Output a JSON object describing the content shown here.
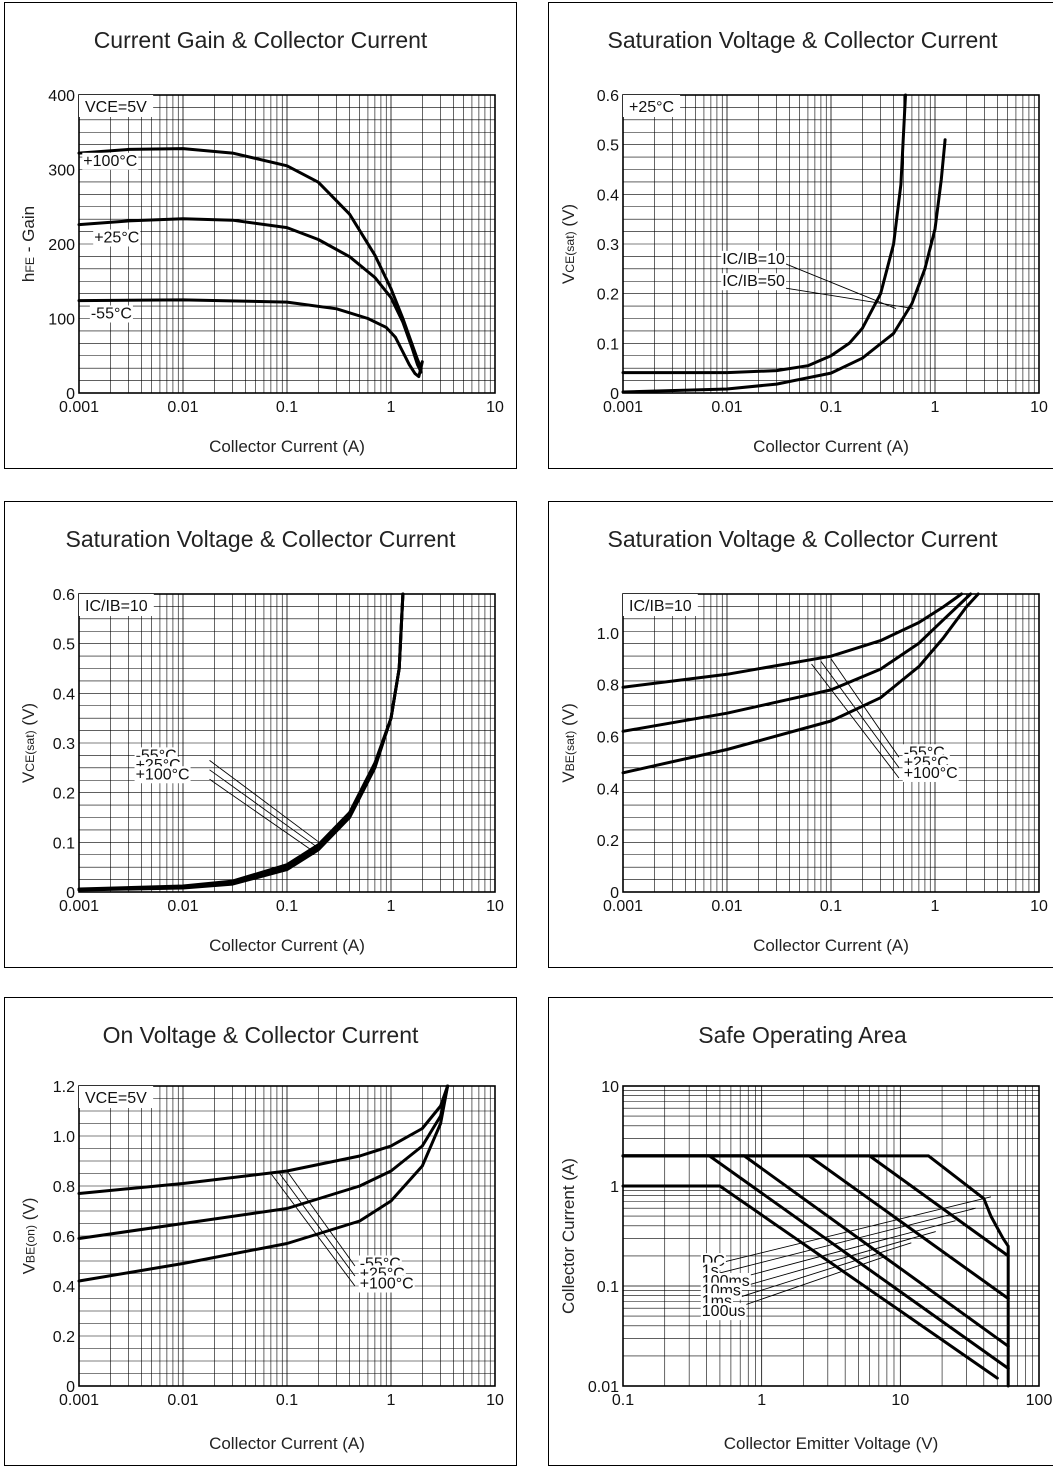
{
  "chart_data": [
    {
      "type": "line",
      "title": "Current Gain & Collector Current",
      "xlabel": "Collector Current (A)",
      "ylabel": "hFE - Gain",
      "xscale": "log",
      "yscale": "linear",
      "xlim": [
        0.001,
        10
      ],
      "ylim": [
        0,
        400
      ],
      "xticks": [
        "0.001",
        "0.01",
        "0.1",
        "1",
        "10"
      ],
      "yticks": [
        {
          "v": 0,
          "t": "0"
        },
        {
          "v": 100,
          "t": "100"
        },
        {
          "v": 200,
          "t": "200"
        },
        {
          "v": 300,
          "t": "300"
        },
        {
          "v": 400,
          "t": "400"
        }
      ],
      "grid": true,
      "condition": "VCE=5V",
      "series": [
        {
          "name": "+100°C",
          "points": [
            [
              0.001,
              322
            ],
            [
              0.003,
              327
            ],
            [
              0.01,
              328
            ],
            [
              0.03,
              322
            ],
            [
              0.1,
              305
            ],
            [
              0.2,
              283
            ],
            [
              0.4,
              240
            ],
            [
              0.7,
              185
            ],
            [
              1,
              140
            ],
            [
              1.3,
              100
            ],
            [
              1.6,
              65
            ],
            [
              1.8,
              45
            ],
            [
              1.95,
              33
            ]
          ]
        },
        {
          "name": "+25°C",
          "points": [
            [
              0.001,
              226
            ],
            [
              0.003,
              231
            ],
            [
              0.01,
              234
            ],
            [
              0.03,
              232
            ],
            [
              0.1,
              222
            ],
            [
              0.2,
              206
            ],
            [
              0.4,
              183
            ],
            [
              0.7,
              155
            ],
            [
              1,
              128
            ],
            [
              1.3,
              95
            ],
            [
              1.6,
              60
            ],
            [
              1.8,
              38
            ],
            [
              1.95,
              28
            ]
          ]
        },
        {
          "name": "-55°C",
          "points": [
            [
              0.001,
              124
            ],
            [
              0.01,
              125
            ],
            [
              0.1,
              122
            ],
            [
              0.3,
              113
            ],
            [
              0.6,
              100
            ],
            [
              0.9,
              88
            ],
            [
              1.1,
              75
            ],
            [
              1.3,
              55
            ],
            [
              1.5,
              38
            ],
            [
              1.7,
              26
            ],
            [
              1.85,
              22
            ],
            [
              1.95,
              35
            ],
            [
              2.0,
              42
            ]
          ]
        }
      ],
      "annotations": [
        {
          "text": "+100°C",
          "x": 0.0011,
          "y": 305
        },
        {
          "text": "+25°C",
          "x": 0.0014,
          "y": 202
        },
        {
          "text": "-55°C",
          "x": 0.0013,
          "y": 100
        }
      ]
    },
    {
      "type": "line",
      "title": "Saturation Voltage & Collector Current",
      "xlabel": "Collector Current (A)",
      "ylabel": "VCE(sat) (V)",
      "xscale": "log",
      "yscale": "linear",
      "xlim": [
        0.001,
        10
      ],
      "ylim": [
        0,
        0.6
      ],
      "xticks": [
        "0.001",
        "0.01",
        "0.1",
        "1",
        "10"
      ],
      "yticks": [
        {
          "v": 0,
          "t": "0"
        },
        {
          "v": 0.1,
          "t": "0.1"
        },
        {
          "v": 0.2,
          "t": "0.2"
        },
        {
          "v": 0.3,
          "t": "0.3"
        },
        {
          "v": 0.4,
          "t": "0.4"
        },
        {
          "v": 0.5,
          "t": "0.5"
        },
        {
          "v": 0.6,
          "t": "0.6"
        }
      ],
      "grid": true,
      "condition": "+25°C",
      "series": [
        {
          "name": "IC/IB=10",
          "points": [
            [
              0.001,
              0.041
            ],
            [
              0.01,
              0.041
            ],
            [
              0.03,
              0.045
            ],
            [
              0.06,
              0.055
            ],
            [
              0.1,
              0.075
            ],
            [
              0.15,
              0.1
            ],
            [
              0.2,
              0.13
            ],
            [
              0.3,
              0.2
            ],
            [
              0.4,
              0.3
            ],
            [
              0.47,
              0.42
            ],
            [
              0.52,
              0.6
            ]
          ]
        },
        {
          "name": "IC/IB=50",
          "points": [
            [
              0.001,
              0.002
            ],
            [
              0.01,
              0.008
            ],
            [
              0.03,
              0.018
            ],
            [
              0.1,
              0.04
            ],
            [
              0.2,
              0.07
            ],
            [
              0.4,
              0.12
            ],
            [
              0.6,
              0.18
            ],
            [
              0.8,
              0.25
            ],
            [
              1.0,
              0.33
            ],
            [
              1.15,
              0.43
            ],
            [
              1.25,
              0.51
            ]
          ]
        }
      ],
      "annotations": [
        {
          "text": "IC/IB=10",
          "x": 0.009,
          "y": 0.26
        },
        {
          "text": "IC/IB=50",
          "x": 0.009,
          "y": 0.215
        }
      ]
    },
    {
      "type": "line",
      "title": "Saturation Voltage & Collector Current",
      "xlabel": "Collector Current (A)",
      "ylabel": "VCE(sat) (V)",
      "xscale": "log",
      "yscale": "linear",
      "xlim": [
        0.001,
        10
      ],
      "ylim": [
        0,
        0.6
      ],
      "xticks": [
        "0.001",
        "0.01",
        "0.1",
        "1",
        "10"
      ],
      "yticks": [
        {
          "v": 0,
          "t": "0"
        },
        {
          "v": 0.1,
          "t": "0.1"
        },
        {
          "v": 0.2,
          "t": "0.2"
        },
        {
          "v": 0.3,
          "t": "0.3"
        },
        {
          "v": 0.4,
          "t": "0.4"
        },
        {
          "v": 0.5,
          "t": "0.5"
        },
        {
          "v": 0.6,
          "t": "0.6"
        }
      ],
      "grid": true,
      "condition": "IC/IB=10",
      "series": [
        {
          "name": "-55°C",
          "points": [
            [
              0.001,
              0.004
            ],
            [
              0.01,
              0.008
            ],
            [
              0.03,
              0.016
            ],
            [
              0.1,
              0.045
            ],
            [
              0.2,
              0.085
            ],
            [
              0.4,
              0.15
            ],
            [
              0.7,
              0.25
            ],
            [
              1.0,
              0.35
            ],
            [
              1.2,
              0.45
            ],
            [
              1.3,
              0.6
            ]
          ]
        },
        {
          "name": "+25°C",
          "points": [
            [
              0.001,
              0.005
            ],
            [
              0.01,
              0.01
            ],
            [
              0.03,
              0.019
            ],
            [
              0.1,
              0.05
            ],
            [
              0.2,
              0.09
            ],
            [
              0.4,
              0.155
            ],
            [
              0.7,
              0.255
            ],
            [
              1.0,
              0.35
            ],
            [
              1.2,
              0.45
            ],
            [
              1.3,
              0.6
            ]
          ]
        },
        {
          "name": "+100°C",
          "points": [
            [
              0.001,
              0.006
            ],
            [
              0.01,
              0.012
            ],
            [
              0.03,
              0.022
            ],
            [
              0.1,
              0.055
            ],
            [
              0.2,
              0.095
            ],
            [
              0.4,
              0.16
            ],
            [
              0.7,
              0.26
            ],
            [
              1.0,
              0.35
            ],
            [
              1.2,
              0.45
            ],
            [
              1.3,
              0.6
            ]
          ]
        }
      ],
      "annotations": [
        {
          "text": "-55°C",
          "x": 0.0035,
          "y": 0.265
        },
        {
          "text": "+25°C",
          "x": 0.0035,
          "y": 0.246
        },
        {
          "text": "+100°C",
          "x": 0.0035,
          "y": 0.227
        }
      ]
    },
    {
      "type": "line",
      "title": "Saturation Voltage & Collector Current",
      "xlabel": "Collector Current (A)",
      "ylabel": "VBE(sat) (V)",
      "xscale": "log",
      "yscale": "linear",
      "xlim": [
        0.001,
        10
      ],
      "ylim": [
        0,
        1.15
      ],
      "xticks": [
        "0.001",
        "0.01",
        "0.1",
        "1",
        "10"
      ],
      "yticks": [
        {
          "v": 0,
          "t": "0"
        },
        {
          "v": 0.2,
          "t": "0.2"
        },
        {
          "v": 0.4,
          "t": "0.4"
        },
        {
          "v": 0.6,
          "t": "0.6"
        },
        {
          "v": 0.8,
          "t": "0.8"
        },
        {
          "v": 1.0,
          "t": "1.0"
        }
      ],
      "grid": true,
      "condition": "IC/IB=10",
      "series": [
        {
          "name": "-55°C",
          "points": [
            [
              0.001,
              0.79
            ],
            [
              0.01,
              0.84
            ],
            [
              0.1,
              0.91
            ],
            [
              0.3,
              0.97
            ],
            [
              0.7,
              1.04
            ],
            [
              1.2,
              1.1
            ],
            [
              1.8,
              1.15
            ]
          ]
        },
        {
          "name": "+25°C",
          "points": [
            [
              0.001,
              0.62
            ],
            [
              0.01,
              0.69
            ],
            [
              0.1,
              0.78
            ],
            [
              0.3,
              0.86
            ],
            [
              0.7,
              0.96
            ],
            [
              1.2,
              1.05
            ],
            [
              2.2,
              1.15
            ]
          ]
        },
        {
          "name": "+100°C",
          "points": [
            [
              0.001,
              0.46
            ],
            [
              0.01,
              0.55
            ],
            [
              0.1,
              0.66
            ],
            [
              0.3,
              0.75
            ],
            [
              0.7,
              0.87
            ],
            [
              1.2,
              0.98
            ],
            [
              2.0,
              1.1
            ],
            [
              2.6,
              1.15
            ]
          ]
        }
      ],
      "annotations": [
        {
          "text": "-55°C",
          "x": 0.5,
          "y": 0.52
        },
        {
          "text": "+25°C",
          "x": 0.5,
          "y": 0.48
        },
        {
          "text": "+100°C",
          "x": 0.5,
          "y": 0.44
        }
      ]
    },
    {
      "type": "line",
      "title": "On Voltage & Collector Current",
      "xlabel": "Collector Current (A)",
      "ylabel": "VBE(on) (V)",
      "xscale": "log",
      "yscale": "linear",
      "xlim": [
        0.001,
        10
      ],
      "ylim": [
        0,
        1.2
      ],
      "xticks": [
        "0.001",
        "0.01",
        "0.1",
        "1",
        "10"
      ],
      "yticks": [
        {
          "v": 0,
          "t": "0"
        },
        {
          "v": 0.2,
          "t": "0.2"
        },
        {
          "v": 0.4,
          "t": "0.4"
        },
        {
          "v": 0.6,
          "t": "0.6"
        },
        {
          "v": 0.8,
          "t": "0.8"
        },
        {
          "v": 1.0,
          "t": "1.0"
        },
        {
          "v": 1.2,
          "t": "1.2"
        }
      ],
      "grid": true,
      "condition": "VCE=5V",
      "series": [
        {
          "name": "-55°C",
          "points": [
            [
              0.001,
              0.77
            ],
            [
              0.01,
              0.81
            ],
            [
              0.1,
              0.86
            ],
            [
              0.5,
              0.92
            ],
            [
              1.0,
              0.96
            ],
            [
              2.0,
              1.03
            ],
            [
              3.0,
              1.12
            ],
            [
              3.5,
              1.2
            ]
          ]
        },
        {
          "name": "+25°C",
          "points": [
            [
              0.001,
              0.59
            ],
            [
              0.01,
              0.65
            ],
            [
              0.1,
              0.71
            ],
            [
              0.5,
              0.8
            ],
            [
              1.0,
              0.86
            ],
            [
              2.0,
              0.96
            ],
            [
              3.0,
              1.08
            ],
            [
              3.5,
              1.2
            ]
          ]
        },
        {
          "name": "+100°C",
          "points": [
            [
              0.001,
              0.42
            ],
            [
              0.01,
              0.49
            ],
            [
              0.1,
              0.57
            ],
            [
              0.5,
              0.66
            ],
            [
              1.0,
              0.74
            ],
            [
              2.0,
              0.88
            ],
            [
              3.0,
              1.05
            ],
            [
              3.5,
              1.2
            ]
          ]
        }
      ],
      "annotations": [
        {
          "text": "-55°C",
          "x": 0.5,
          "y": 0.47
        },
        {
          "text": "+25°C",
          "x": 0.5,
          "y": 0.43
        },
        {
          "text": "+100°C",
          "x": 0.5,
          "y": 0.39
        }
      ]
    },
    {
      "type": "line",
      "title": "Safe Operating Area",
      "xlabel": "Collector Emitter Voltage (V)",
      "ylabel": "Collector Current (A)",
      "xscale": "log",
      "yscale": "log",
      "xlim": [
        0.1,
        100
      ],
      "ylim": [
        0.01,
        10
      ],
      "xticks": [
        "0.1",
        "1",
        "10",
        "100"
      ],
      "yticks": [
        {
          "v": 0.01,
          "t": "0.01"
        },
        {
          "v": 0.1,
          "t": "0.1"
        },
        {
          "v": 1,
          "t": "1"
        },
        {
          "v": 10,
          "t": "10"
        }
      ],
      "grid": true,
      "series": [
        {
          "name": "DC",
          "points": [
            [
              0.1,
              1
            ],
            [
              0.5,
              1
            ],
            [
              50,
              0.012
            ]
          ]
        },
        {
          "name": "1s",
          "points": [
            [
              0.1,
              2
            ],
            [
              0.42,
              2
            ],
            [
              60,
              0.015
            ]
          ]
        },
        {
          "name": "100ms",
          "points": [
            [
              0.1,
              2
            ],
            [
              0.75,
              2
            ],
            [
              60,
              0.025
            ]
          ]
        },
        {
          "name": "10ms",
          "points": [
            [
              0.1,
              2
            ],
            [
              2.2,
              2
            ],
            [
              60,
              0.075
            ]
          ]
        },
        {
          "name": "1ms",
          "points": [
            [
              0.1,
              2
            ],
            [
              6,
              2
            ],
            [
              60,
              0.2
            ]
          ]
        },
        {
          "name": "100us",
          "points": [
            [
              0.1,
              2
            ],
            [
              16,
              2
            ],
            [
              40,
              0.75
            ],
            [
              45,
              0.5
            ],
            [
              55,
              0.3
            ],
            [
              60,
              0.25
            ],
            [
              60,
              0.01
            ]
          ]
        }
      ],
      "annotations": [
        {
          "text": "DC",
          "x": 0.37,
          "y": 0.158
        },
        {
          "text": "1s",
          "x": 0.37,
          "y": 0.127
        },
        {
          "text": "100ms",
          "x": 0.37,
          "y": 0.1
        },
        {
          "text": "10ms",
          "x": 0.37,
          "y": 0.08
        },
        {
          "text": "1ms",
          "x": 0.37,
          "y": 0.063
        },
        {
          "text": "100us",
          "x": 0.37,
          "y": 0.05
        }
      ]
    }
  ]
}
